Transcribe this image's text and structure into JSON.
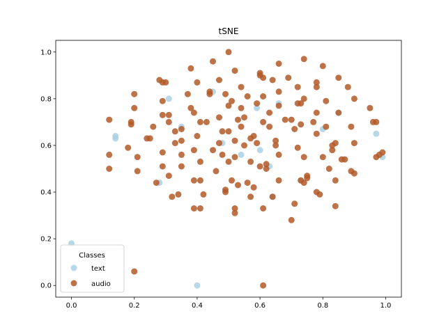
{
  "chart_data": {
    "type": "scatter",
    "title": "tSNE",
    "xlabel": "",
    "ylabel": "",
    "xlim": [
      -0.05,
      1.05
    ],
    "ylim": [
      -0.05,
      1.05
    ],
    "xticks": [
      0.0,
      0.2,
      0.4,
      0.6,
      0.8,
      1.0
    ],
    "yticks": [
      0.0,
      0.2,
      0.4,
      0.6,
      0.8,
      1.0
    ],
    "xtick_labels": [
      "0.0",
      "0.2",
      "0.4",
      "0.6",
      "0.8",
      "1.0"
    ],
    "ytick_labels": [
      "0.0",
      "0.2",
      "0.4",
      "0.6",
      "0.8",
      "1.0"
    ],
    "grid": false,
    "legend": {
      "title": "Classes",
      "placement": "lower-left"
    },
    "series": [
      {
        "name": "text",
        "color": "#a6cee3",
        "points": [
          [
            0.0,
            0.18
          ],
          [
            0.4,
            0.0
          ],
          [
            0.14,
            0.64
          ],
          [
            0.14,
            0.63
          ],
          [
            0.59,
            0.76
          ],
          [
            0.6,
            0.58
          ],
          [
            0.97,
            0.65
          ],
          [
            0.73,
            0.45
          ],
          [
            0.64,
            0.38
          ],
          [
            0.85,
            0.74
          ],
          [
            0.31,
            0.8
          ],
          [
            0.45,
            0.83
          ],
          [
            0.48,
            0.61
          ],
          [
            0.54,
            0.56
          ],
          [
            0.63,
            0.51
          ],
          [
            0.8,
            0.67
          ],
          [
            0.28,
            0.44
          ],
          [
            0.35,
            0.68
          ],
          [
            0.99,
            0.55
          ],
          [
            0.66,
            0.78
          ]
        ]
      },
      {
        "name": "audio",
        "color": "#b15928",
        "points": [
          [
            0.2,
            0.06
          ],
          [
            0.61,
            0.0
          ],
          [
            0.12,
            0.71
          ],
          [
            0.12,
            0.56
          ],
          [
            0.12,
            0.5
          ],
          [
            0.18,
            0.59
          ],
          [
            0.19,
            0.7
          ],
          [
            0.19,
            0.69
          ],
          [
            0.2,
            0.82
          ],
          [
            0.2,
            0.76
          ],
          [
            0.21,
            0.49
          ],
          [
            0.21,
            0.55
          ],
          [
            0.24,
            0.63
          ],
          [
            0.25,
            0.63
          ],
          [
            0.26,
            0.68
          ],
          [
            0.27,
            0.44
          ],
          [
            0.28,
            0.88
          ],
          [
            0.29,
            0.87
          ],
          [
            0.29,
            0.79
          ],
          [
            0.29,
            0.73
          ],
          [
            0.29,
            0.57
          ],
          [
            0.29,
            0.51
          ],
          [
            0.3,
            0.87
          ],
          [
            0.31,
            0.73
          ],
          [
            0.31,
            0.7
          ],
          [
            0.31,
            0.47
          ],
          [
            0.32,
            0.38
          ],
          [
            0.33,
            0.66
          ],
          [
            0.33,
            0.61
          ],
          [
            0.34,
            0.39
          ],
          [
            0.35,
            0.67
          ],
          [
            0.35,
            0.51
          ],
          [
            0.35,
            0.56
          ],
          [
            0.35,
            0.62
          ],
          [
            0.37,
            0.82
          ],
          [
            0.38,
            0.93
          ],
          [
            0.38,
            0.76
          ],
          [
            0.39,
            0.74
          ],
          [
            0.39,
            0.58
          ],
          [
            0.39,
            0.45
          ],
          [
            0.39,
            0.33
          ],
          [
            0.4,
            0.87
          ],
          [
            0.4,
            0.64
          ],
          [
            0.41,
            0.7
          ],
          [
            0.41,
            0.53
          ],
          [
            0.41,
            0.45
          ],
          [
            0.41,
            0.33
          ],
          [
            0.42,
            0.39
          ],
          [
            0.43,
            0.7
          ],
          [
            0.44,
            0.82
          ],
          [
            0.44,
            0.83
          ],
          [
            0.45,
            0.96
          ],
          [
            0.45,
            0.58
          ],
          [
            0.46,
            0.49
          ],
          [
            0.47,
            0.72
          ],
          [
            0.47,
            0.88
          ],
          [
            0.47,
            0.61
          ],
          [
            0.48,
            0.66
          ],
          [
            0.48,
            0.56
          ],
          [
            0.49,
            0.41
          ],
          [
            0.49,
            0.4
          ],
          [
            0.49,
            0.82
          ],
          [
            0.5,
            1.0
          ],
          [
            0.5,
            0.77
          ],
          [
            0.5,
            0.66
          ],
          [
            0.5,
            0.53
          ],
          [
            0.51,
            0.79
          ],
          [
            0.51,
            0.45
          ],
          [
            0.52,
            0.92
          ],
          [
            0.52,
            0.62
          ],
          [
            0.52,
            0.55
          ],
          [
            0.52,
            0.33
          ],
          [
            0.52,
            0.31
          ],
          [
            0.53,
            0.43
          ],
          [
            0.53,
            0.71
          ],
          [
            0.54,
            0.85
          ],
          [
            0.54,
            0.76
          ],
          [
            0.54,
            0.68
          ],
          [
            0.55,
            0.72
          ],
          [
            0.55,
            0.6
          ],
          [
            0.56,
            0.81
          ],
          [
            0.56,
            0.44
          ],
          [
            0.57,
            0.38
          ],
          [
            0.57,
            0.63
          ],
          [
            0.57,
            0.53
          ],
          [
            0.58,
            0.42
          ],
          [
            0.58,
            0.64
          ],
          [
            0.59,
            0.61
          ],
          [
            0.59,
            0.78
          ],
          [
            0.6,
            0.91
          ],
          [
            0.6,
            0.9
          ],
          [
            0.6,
            0.51
          ],
          [
            0.61,
            0.89
          ],
          [
            0.61,
            0.81
          ],
          [
            0.61,
            0.7
          ],
          [
            0.61,
            0.33
          ],
          [
            0.62,
            0.5
          ],
          [
            0.62,
            0.52
          ],
          [
            0.63,
            0.74
          ],
          [
            0.63,
            0.68
          ],
          [
            0.64,
            0.88
          ],
          [
            0.64,
            0.38
          ],
          [
            0.65,
            0.62
          ],
          [
            0.65,
            0.6
          ],
          [
            0.66,
            0.95
          ],
          [
            0.66,
            0.83
          ],
          [
            0.66,
            0.77
          ],
          [
            0.66,
            0.56
          ],
          [
            0.66,
            0.45
          ],
          [
            0.68,
            0.71
          ],
          [
            0.69,
            0.89
          ],
          [
            0.7,
            0.28
          ],
          [
            0.7,
            0.71
          ],
          [
            0.71,
            0.67
          ],
          [
            0.71,
            0.35
          ],
          [
            0.72,
            0.85
          ],
          [
            0.72,
            0.78
          ],
          [
            0.72,
            0.59
          ],
          [
            0.73,
            0.78
          ],
          [
            0.73,
            0.69
          ],
          [
            0.73,
            0.45
          ],
          [
            0.74,
            0.97
          ],
          [
            0.74,
            0.8
          ],
          [
            0.74,
            0.55
          ],
          [
            0.74,
            0.44
          ],
          [
            0.75,
            0.47
          ],
          [
            0.75,
            0.46
          ],
          [
            0.77,
            0.7
          ],
          [
            0.78,
            0.87
          ],
          [
            0.78,
            0.85
          ],
          [
            0.78,
            0.74
          ],
          [
            0.78,
            0.65
          ],
          [
            0.78,
            0.4
          ],
          [
            0.79,
            0.39
          ],
          [
            0.8,
            0.94
          ],
          [
            0.8,
            0.55
          ],
          [
            0.81,
            0.68
          ],
          [
            0.81,
            0.79
          ],
          [
            0.82,
            0.5
          ],
          [
            0.83,
            0.58
          ],
          [
            0.83,
            0.6
          ],
          [
            0.84,
            0.61
          ],
          [
            0.84,
            0.45
          ],
          [
            0.84,
            0.34
          ],
          [
            0.85,
            0.89
          ],
          [
            0.85,
            0.74
          ],
          [
            0.86,
            0.54
          ],
          [
            0.87,
            0.54
          ],
          [
            0.88,
            0.85
          ],
          [
            0.89,
            0.68
          ],
          [
            0.89,
            0.49
          ],
          [
            0.9,
            0.61
          ],
          [
            0.9,
            0.48
          ],
          [
            0.9,
            0.8
          ],
          [
            0.95,
            0.76
          ],
          [
            0.96,
            0.7
          ],
          [
            0.97,
            0.55
          ],
          [
            0.97,
            0.7
          ],
          [
            0.98,
            0.56
          ],
          [
            0.99,
            0.57
          ]
        ]
      }
    ]
  }
}
